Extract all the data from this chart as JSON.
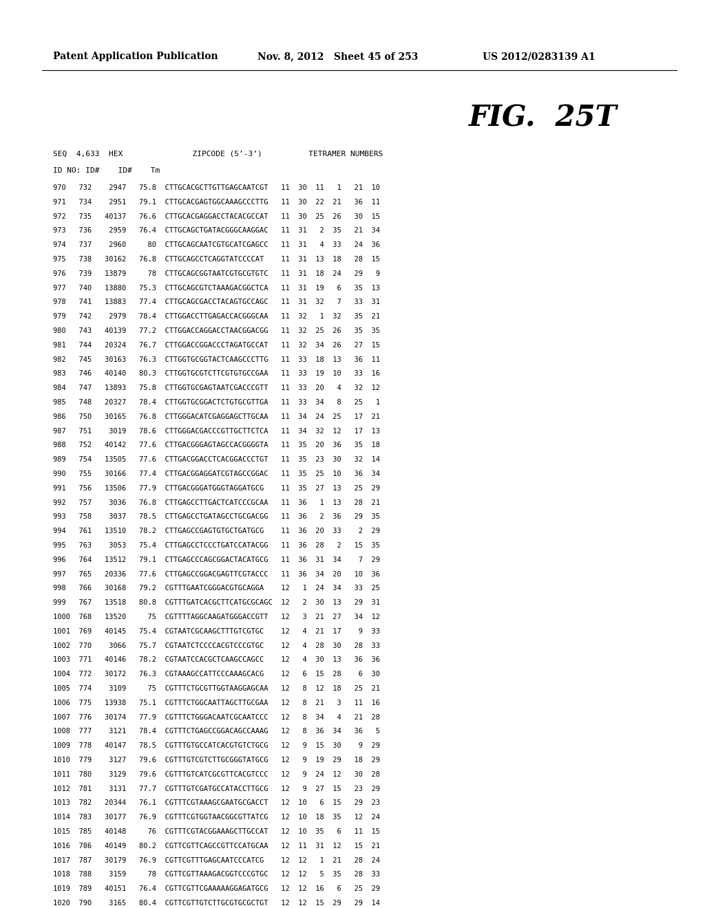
{
  "header_left": "Patent Application Publication",
  "header_mid": "Nov. 8, 2012   Sheet 45 of 253",
  "header_right": "US 2012/0283139 A1",
  "fig_label": "FIG.  25T",
  "col_header1": "SEQ  4,633  HEX               ZIPCODE (5’-3’)          TETRAMER NUMBERS",
  "col_header2": "ID NO: ID#    ID#    Tm",
  "rows": [
    "970   732    2947   75.8  CTTGCACGCTTGTTGAGCAATCGT   11  30  11   1   21  10",
    "971   734    2951   79.1  CTTGCACGAGTGGCAAAGCCCTTG   11  30  22  21   36  11",
    "972   735   40137   76.6  CTTGCACGAGGACCTACACGCCAT   11  30  25  26   30  15",
    "973   736    2959   76.4  CTTGCAGCTGATACGGGCAAGGAC   11  31   2  35   21  34",
    "974   737    2960     80  CTTGCAGCAATCGTGCATCGAGCC   11  31   4  33   24  36",
    "975   738   30162   76.8  CTTGCAGCCTCAGGTATCCCCAT    11  31  13  18   28  15",
    "976   739   13879     78  CTTGCAGCGGTAATCGTGCGTGTC   11  31  18  24   29   9",
    "977   740   13880   75.3  CTTGCAGCGTCTAAAGACGGCTCA   11  31  19   6   35  13",
    "978   741   13883   77.4  CTTGCAGCGACCTACAGTGCCAGC   11  31  32   7   33  31",
    "979   742    2979   78.4  CTTGGACCTTGAGACCACGGGCAA   11  32   1  32   35  21",
    "980   743   40139   77.2  CTTGGACCAGGACCTAACGGACGG   11  32  25  26   35  35",
    "981   744   20324   76.7  CTTGGACCGGACCCTAGATGCCAT   11  32  34  26   27  15",
    "982   745   30163   76.3  CTTGGTGCGGTACTCAAGCCCTTG   11  33  18  13   36  11",
    "983   746   40140   80.3  CTTGGTGCGTCTTCGTGTGCCGAA   11  33  19  10   33  16",
    "984   747   13893   75.8  CTTGGTGCGAGTAATCGACCCGTT   11  33  20   4   32  12",
    "985   748   20327   78.4  CTTGGTGCGGACTCTGTGCGTTGA   11  33  34   8   25   1",
    "986   750   30165   76.8  CTTGGGACATCGAGGAGCTTGCAA   11  34  24  25   17  21",
    "987   751    3019   78.6  CTTGGGACGACCCGTTGCTTCTCA   11  34  32  12   17  13",
    "988   752   40142   77.6  CTTGACGGGAGTAGCCACGGGGTA   11  35  20  36   35  18",
    "989   754   13505   77.6  CTTGACGGACCTCACGGACCCTGT   11  35  23  30   32  14",
    "990   755   30166   77.4  CTTGACGGAGGATCGTAGCCGGAC   11  35  25  10   36  34",
    "991   756   13506   77.9  CTTGACGGGATGGGTAGGATGCG    11  35  27  13   25  29",
    "992   757    3036   76.8  CTTGAGCCTTGACTCATCCCGCAA   11  36   1  13   28  21",
    "993   758    3037   78.5  CTTGAGCCTGATAGCCTGCGACGG   11  36   2  36   29  35",
    "994   761   13510   78.2  CTTGAGCCGAGTGTGCTGATGCG    11  36  20  33    2  29",
    "995   763    3053   75.4  CTTGAGCCTCCCTGATCCATACGG   11  36  28   2   15  35",
    "996   764   13512   79.1  CTTGAGCCCAGCGGACTACATGCG   11  36  31  34    7  29",
    "997   765   20336   77.6  CTTGAGCCGGACGAGTTCGTACCC   11  36  34  20   10  36",
    "998   766   30168   79.2  CGTTTGAATCGGGACGTGCAGGA    12   1  24  34   33  25",
    "999   767   13518   80.8  CGTTTGATCACGCTTCATGCGCAGC  12   2  30  13   29  31",
    "1000  768   13520     75  CGTTTTAGGCAAGATGGGACCGTT   12   3  21  27   34  12",
    "1001  769   40145   75.4  CGTAATCGCAAGCTTTGTCGTGC    12   4  21  17    9  33",
    "1002  770    3066   75.7  CGTAATCTCCCCACGTCCCGTGC    12   4  28  30   28  33",
    "1003  771   40146   78.2  CGTAATCCACGCTCAAGCCAGCC    12   4  30  13   36  36",
    "1004  772   30172   76.3  CGTAAAGCCATTCCCAAAGCACG    12   6  15  28    6  30",
    "1005  774    3109     75  CGTTTCTGCGTTGGTAAGGAGCAA   12   8  12  18   25  21",
    "1006  775   13938   75.1  CGTTTCTGGCAATTAGCTTGCGAA   12   8  21   3   11  16",
    "1007  776   30174   77.9  CGTTTCTGGGACAATCGCAATCCC   12   8  34   4   21  28",
    "1008  777    3121   78.4  CGTTTCTGAGCCGGACAGCCAAAG   12   8  36  34   36   5",
    "1009  778   40147   78.5  CGTTTGTGCCATCACGTGTCTGCG   12   9  15  30    9  29",
    "1010  779    3127   79.6  CGTTTGTCGTCTTGCGGGTATGCG   12   9  19  29   18  29",
    "1011  780    3129   79.6  CGTTTGTCATCGCGTTCACGTCCC   12   9  24  12   30  28",
    "1012  781    3131   77.7  CGTTTGTCGATGCCATACCTTGCG   12   9  27  15   23  29",
    "1013  782   20344   76.1  CGTTTCGTAAAGCGAATGCGACCT   12  10   6  15   29  23",
    "1014  783   30177   76.9  CGTTTCGTGGTAACGGCGTTATCG   12  10  18  35   12  24",
    "1015  785   40148     76  CGTTTCGTACGGAAAGCTTGCCAT   12  10  35   6   11  15",
    "1016  786   40149   80.2  CGTTCGTTCAGCCGTTCCATGCAA   12  11  31  12   15  21",
    "1017  787   30179   76.9  CGTTCGTTTGAGCAATCCCATCG    12  12   1  21   28  24",
    "1018  788    3159     78  CGTTCGTTAAAGACGGTCCCGTGC   12  12   5  35   28  33",
    "1019  789   40151   76.4  CGTTCGTTCGAAAAAGGAGATGCG   12  12  16   6   25  29",
    "1020  790    3165   80.4  CGTTCGTTGTCTTGCGTGCGCTGT   12  12  15  29   29  14"
  ],
  "bg_color": "#ffffff",
  "text_color": "#000000",
  "header_fontsize": 10,
  "fig_fontsize": 30,
  "col_header_fontsize": 8,
  "row_fontsize": 7.5
}
